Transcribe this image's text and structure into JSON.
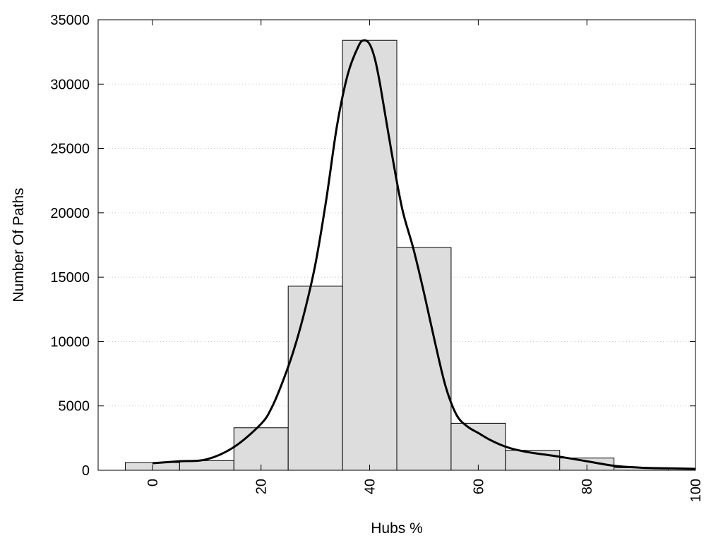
{
  "chart_data": {
    "type": "bar",
    "title": "",
    "xlabel": "Hubs %",
    "ylabel": "Number Of Paths",
    "xlim": [
      -10,
      100
    ],
    "ylim": [
      0,
      35000
    ],
    "x_ticks": [
      0,
      20,
      40,
      60,
      80,
      100
    ],
    "y_ticks": [
      0,
      5000,
      10000,
      15000,
      20000,
      25000,
      30000,
      35000
    ],
    "grid": "horizontal-dotted",
    "legend": "none",
    "bars": [
      {
        "x0": -5,
        "x1": 5,
        "value": 600
      },
      {
        "x0": 5,
        "x1": 15,
        "value": 750
      },
      {
        "x0": 15,
        "x1": 25,
        "value": 3300
      },
      {
        "x0": 25,
        "x1": 35,
        "value": 14300
      },
      {
        "x0": 35,
        "x1": 45,
        "value": 33400
      },
      {
        "x0": 45,
        "x1": 55,
        "value": 17300
      },
      {
        "x0": 55,
        "x1": 65,
        "value": 3650
      },
      {
        "x0": 65,
        "x1": 75,
        "value": 1550
      },
      {
        "x0": 75,
        "x1": 85,
        "value": 950
      },
      {
        "x0": 85,
        "x1": 95,
        "value": 200
      }
    ],
    "curve": {
      "x": [
        0,
        5,
        10,
        15,
        20,
        22,
        24,
        26,
        28,
        30,
        32,
        34,
        36,
        38,
        39,
        40,
        41,
        42,
        44,
        46,
        48,
        50,
        52,
        54,
        56,
        58,
        60,
        62,
        64,
        66,
        68,
        70,
        75,
        80,
        85,
        90,
        95,
        100
      ],
      "y": [
        550,
        700,
        850,
        1800,
        3600,
        4900,
        6900,
        9300,
        12300,
        16000,
        21000,
        26800,
        30800,
        33000,
        33400,
        33100,
        31900,
        29800,
        24800,
        20300,
        17300,
        13800,
        10000,
        6500,
        4300,
        3400,
        2900,
        2400,
        2000,
        1700,
        1500,
        1350,
        1050,
        700,
        350,
        200,
        150,
        110
      ]
    },
    "colors": {
      "bar_fill": "#dddddd",
      "bar_stroke": "#000000",
      "curve": "#000000",
      "grid": "#c8c8c8"
    }
  }
}
